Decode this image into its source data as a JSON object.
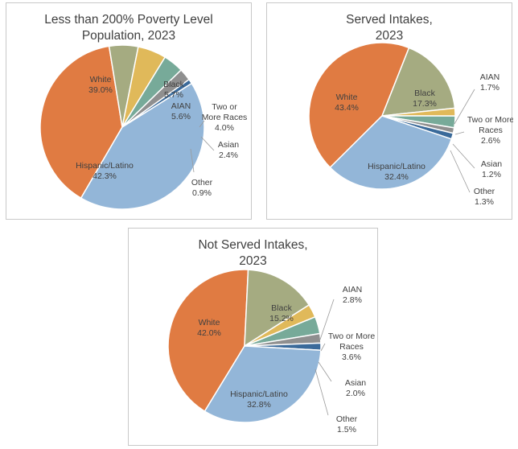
{
  "colors": {
    "White": "#e07b42",
    "Black": "#a5ab81",
    "AIAN": "#e0b95a",
    "Two or More Races": "#77aa99",
    "Asian": "#8f8f8f",
    "Other": "#3a6a9a",
    "Hispanic/Latino": "#93b6d8"
  },
  "chart_data": [
    {
      "type": "pie",
      "title_lines": [
        "Less than 200% Poverty Level",
        "Population, 2023"
      ],
      "slices": [
        {
          "label": "White",
          "value": 39.0,
          "text": "39.0%"
        },
        {
          "label": "Black",
          "value": 5.7,
          "text": "5.7%"
        },
        {
          "label": "AIAN",
          "value": 5.6,
          "text": "5.6%"
        },
        {
          "label": "Two or More Races",
          "value": 4.0,
          "text": "4.0%"
        },
        {
          "label": "Asian",
          "value": 2.4,
          "text": "2.4%"
        },
        {
          "label": "Other",
          "value": 0.9,
          "text": "0.9%"
        },
        {
          "label": "Hispanic/Latino",
          "value": 42.3,
          "text": "42.3%"
        }
      ]
    },
    {
      "type": "pie",
      "title_lines": [
        "Served Intakes,",
        "2023"
      ],
      "slices": [
        {
          "label": "White",
          "value": 43.4,
          "text": "43.4%"
        },
        {
          "label": "Black",
          "value": 17.3,
          "text": "17.3%"
        },
        {
          "label": "AIAN",
          "value": 1.7,
          "text": "1.7%"
        },
        {
          "label": "Two or More Races",
          "value": 2.6,
          "text": "2.6%"
        },
        {
          "label": "Asian",
          "value": 1.2,
          "text": "1.2%"
        },
        {
          "label": "Other",
          "value": 1.3,
          "text": "1.3%"
        },
        {
          "label": "Hispanic/Latino",
          "value": 32.4,
          "text": "32.4%"
        }
      ]
    },
    {
      "type": "pie",
      "title_lines": [
        "Not Served Intakes,",
        "2023"
      ],
      "slices": [
        {
          "label": "White",
          "value": 42.0,
          "text": "42.0%"
        },
        {
          "label": "Black",
          "value": 15.2,
          "text": "15.2%"
        },
        {
          "label": "AIAN",
          "value": 2.8,
          "text": "2.8%"
        },
        {
          "label": "Two or More Races",
          "value": 3.6,
          "text": "3.6%"
        },
        {
          "label": "Asian",
          "value": 2.0,
          "text": "2.0%"
        },
        {
          "label": "Other",
          "value": 1.5,
          "text": "1.5%"
        },
        {
          "label": "Hispanic/Latino",
          "value": 32.8,
          "text": "32.8%"
        }
      ]
    }
  ]
}
